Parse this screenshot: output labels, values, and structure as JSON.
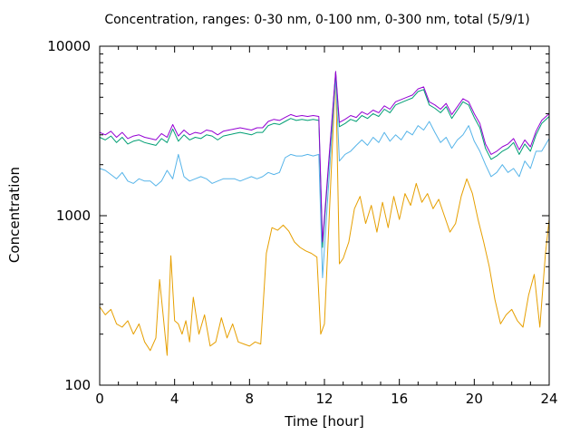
{
  "chart_data": {
    "type": "line",
    "title": "Concentration, ranges: 0-30 nm, 0-100 nm, 0-300 nm, total (5/9/1)",
    "xlabel": "Time [hour]",
    "ylabel": "Concentration",
    "xlim": [
      0,
      24
    ],
    "ylim": [
      100,
      10000
    ],
    "yscale": "log",
    "x_ticks": [
      "0",
      "4",
      "8",
      "12",
      "16",
      "20",
      "24"
    ],
    "y_ticks": [
      "100",
      "1000",
      "10000"
    ],
    "grid": false,
    "legend": "none",
    "series": [
      {
        "color": "#e69f00",
        "x": [
          0,
          0.3,
          0.6,
          0.9,
          1.2,
          1.5,
          1.8,
          2.1,
          2.4,
          2.7,
          3.0,
          3.2,
          3.4,
          3.6,
          3.8,
          4.0,
          4.2,
          4.4,
          4.6,
          4.8,
          5.0,
          5.3,
          5.6,
          5.9,
          6.2,
          6.5,
          6.8,
          7.1,
          7.4,
          7.7,
          8.0,
          8.3,
          8.6,
          8.9,
          9.2,
          9.5,
          9.8,
          10.1,
          10.4,
          10.7,
          11.0,
          11.3,
          11.6,
          11.8,
          12.0,
          12.6,
          12.8,
          13.0,
          13.3,
          13.6,
          13.9,
          14.2,
          14.5,
          14.8,
          15.1,
          15.4,
          15.7,
          16.0,
          16.3,
          16.6,
          16.9,
          17.2,
          17.5,
          17.8,
          18.1,
          18.4,
          18.7,
          19.0,
          19.3,
          19.6,
          19.9,
          20.2,
          20.5,
          20.8,
          21.1,
          21.4,
          21.7,
          22.0,
          22.3,
          22.6,
          22.9,
          23.2,
          23.5,
          23.8,
          24.0
        ],
        "values": [
          290,
          260,
          280,
          230,
          220,
          240,
          200,
          230,
          180,
          160,
          190,
          420,
          250,
          150,
          580,
          240,
          230,
          200,
          240,
          180,
          330,
          200,
          260,
          170,
          180,
          250,
          190,
          230,
          180,
          175,
          170,
          180,
          175,
          600,
          850,
          820,
          880,
          810,
          700,
          650,
          620,
          600,
          570,
          200,
          230,
          7000,
          520,
          560,
          700,
          1100,
          1300,
          900,
          1150,
          800,
          1200,
          850,
          1300,
          950,
          1350,
          1150,
          1550,
          1200,
          1350,
          1100,
          1250,
          1000,
          800,
          900,
          1300,
          1650,
          1350,
          950,
          700,
          500,
          320,
          230,
          260,
          280,
          240,
          220,
          340,
          450,
          220,
          600,
          950
        ]
      },
      {
        "color": "#56b4e9",
        "x": [
          0,
          0.3,
          0.6,
          0.9,
          1.2,
          1.5,
          1.8,
          2.1,
          2.4,
          2.7,
          3.0,
          3.3,
          3.6,
          3.9,
          4.2,
          4.5,
          4.8,
          5.1,
          5.4,
          5.7,
          6.0,
          6.3,
          6.6,
          6.9,
          7.2,
          7.5,
          7.8,
          8.1,
          8.4,
          8.7,
          9.0,
          9.3,
          9.6,
          9.9,
          10.2,
          10.5,
          10.8,
          11.1,
          11.4,
          11.7,
          11.9,
          12.6,
          12.8,
          13.1,
          13.4,
          13.7,
          14.0,
          14.3,
          14.6,
          14.9,
          15.2,
          15.5,
          15.8,
          16.1,
          16.4,
          16.7,
          17.0,
          17.3,
          17.6,
          17.9,
          18.2,
          18.5,
          18.8,
          19.1,
          19.4,
          19.7,
          20.0,
          20.3,
          20.6,
          20.9,
          21.2,
          21.5,
          21.8,
          22.1,
          22.4,
          22.7,
          23.0,
          23.3,
          23.6,
          24.0
        ],
        "values": [
          1900,
          1850,
          1750,
          1650,
          1800,
          1600,
          1550,
          1650,
          1600,
          1600,
          1500,
          1600,
          1850,
          1650,
          2300,
          1700,
          1600,
          1650,
          1700,
          1650,
          1550,
          1600,
          1650,
          1650,
          1650,
          1600,
          1650,
          1700,
          1650,
          1700,
          1800,
          1750,
          1800,
          2200,
          2300,
          2250,
          2250,
          2300,
          2250,
          2300,
          430,
          6600,
          2100,
          2300,
          2400,
          2600,
          2800,
          2600,
          2900,
          2700,
          3100,
          2750,
          3000,
          2800,
          3150,
          3000,
          3400,
          3200,
          3600,
          3100,
          2700,
          2900,
          2500,
          2800,
          3000,
          3400,
          2750,
          2400,
          2000,
          1700,
          1800,
          2000,
          1800,
          1900,
          1700,
          2100,
          1900,
          2400,
          2400,
          2850
        ]
      },
      {
        "color": "#009e73",
        "x": [
          0,
          0.3,
          0.6,
          0.9,
          1.2,
          1.5,
          1.8,
          2.1,
          2.4,
          2.7,
          3.0,
          3.3,
          3.6,
          3.9,
          4.2,
          4.5,
          4.8,
          5.1,
          5.4,
          5.7,
          6.0,
          6.3,
          6.6,
          6.9,
          7.2,
          7.5,
          7.8,
          8.1,
          8.4,
          8.7,
          9.0,
          9.3,
          9.6,
          9.9,
          10.2,
          10.5,
          10.8,
          11.1,
          11.4,
          11.7,
          11.9,
          12.6,
          12.8,
          13.1,
          13.4,
          13.7,
          14.0,
          14.3,
          14.6,
          14.9,
          15.2,
          15.5,
          15.8,
          16.1,
          16.4,
          16.7,
          17.0,
          17.3,
          17.6,
          17.9,
          18.2,
          18.5,
          18.8,
          19.1,
          19.4,
          19.7,
          20.0,
          20.3,
          20.6,
          20.9,
          21.2,
          21.5,
          21.8,
          22.1,
          22.4,
          22.7,
          23.0,
          23.3,
          23.6,
          24.0
        ],
        "values": [
          2900,
          2800,
          2950,
          2700,
          2900,
          2650,
          2750,
          2800,
          2700,
          2650,
          2600,
          2850,
          2700,
          3250,
          2750,
          3000,
          2800,
          2900,
          2850,
          3000,
          2950,
          2800,
          2950,
          3000,
          3050,
          3100,
          3050,
          3000,
          3100,
          3100,
          3400,
          3500,
          3450,
          3600,
          3750,
          3650,
          3700,
          3650,
          3700,
          3650,
          650,
          7000,
          3350,
          3500,
          3700,
          3600,
          3900,
          3750,
          4000,
          3850,
          4250,
          4050,
          4500,
          4650,
          4800,
          4950,
          5400,
          5550,
          4500,
          4300,
          4050,
          4400,
          3750,
          4200,
          4700,
          4500,
          3800,
          3300,
          2500,
          2150,
          2250,
          2400,
          2500,
          2700,
          2300,
          2650,
          2400,
          3000,
          3500,
          3850
        ]
      },
      {
        "color": "#9400d3",
        "x": [
          0,
          0.3,
          0.6,
          0.9,
          1.2,
          1.5,
          1.8,
          2.1,
          2.4,
          2.7,
          3.0,
          3.3,
          3.6,
          3.9,
          4.2,
          4.5,
          4.8,
          5.1,
          5.4,
          5.7,
          6.0,
          6.3,
          6.6,
          6.9,
          7.2,
          7.5,
          7.8,
          8.1,
          8.4,
          8.7,
          9.0,
          9.3,
          9.6,
          9.9,
          10.2,
          10.5,
          10.8,
          11.1,
          11.4,
          11.7,
          11.9,
          12.6,
          12.8,
          13.1,
          13.4,
          13.7,
          14.0,
          14.3,
          14.6,
          14.9,
          15.2,
          15.5,
          15.8,
          16.1,
          16.4,
          16.7,
          17.0,
          17.3,
          17.6,
          17.9,
          18.2,
          18.5,
          18.8,
          19.1,
          19.4,
          19.7,
          20.0,
          20.3,
          20.6,
          20.9,
          21.2,
          21.5,
          21.8,
          22.1,
          22.4,
          22.7,
          23.0,
          23.3,
          23.6,
          24.0
        ],
        "values": [
          3100,
          3000,
          3150,
          2900,
          3100,
          2850,
          2950,
          3000,
          2900,
          2850,
          2800,
          3050,
          2900,
          3450,
          2950,
          3200,
          3000,
          3100,
          3050,
          3200,
          3150,
          3000,
          3150,
          3200,
          3250,
          3300,
          3250,
          3200,
          3300,
          3300,
          3600,
          3700,
          3650,
          3800,
          3950,
          3850,
          3900,
          3850,
          3900,
          3850,
          700,
          7100,
          3550,
          3700,
          3900,
          3800,
          4100,
          3950,
          4200,
          4050,
          4450,
          4250,
          4700,
          4850,
          5000,
          5150,
          5600,
          5750,
          4700,
          4500,
          4250,
          4600,
          3950,
          4400,
          4900,
          4700,
          4000,
          3500,
          2650,
          2300,
          2400,
          2550,
          2650,
          2850,
          2450,
          2800,
          2550,
          3150,
          3650,
          4000
        ]
      }
    ]
  }
}
